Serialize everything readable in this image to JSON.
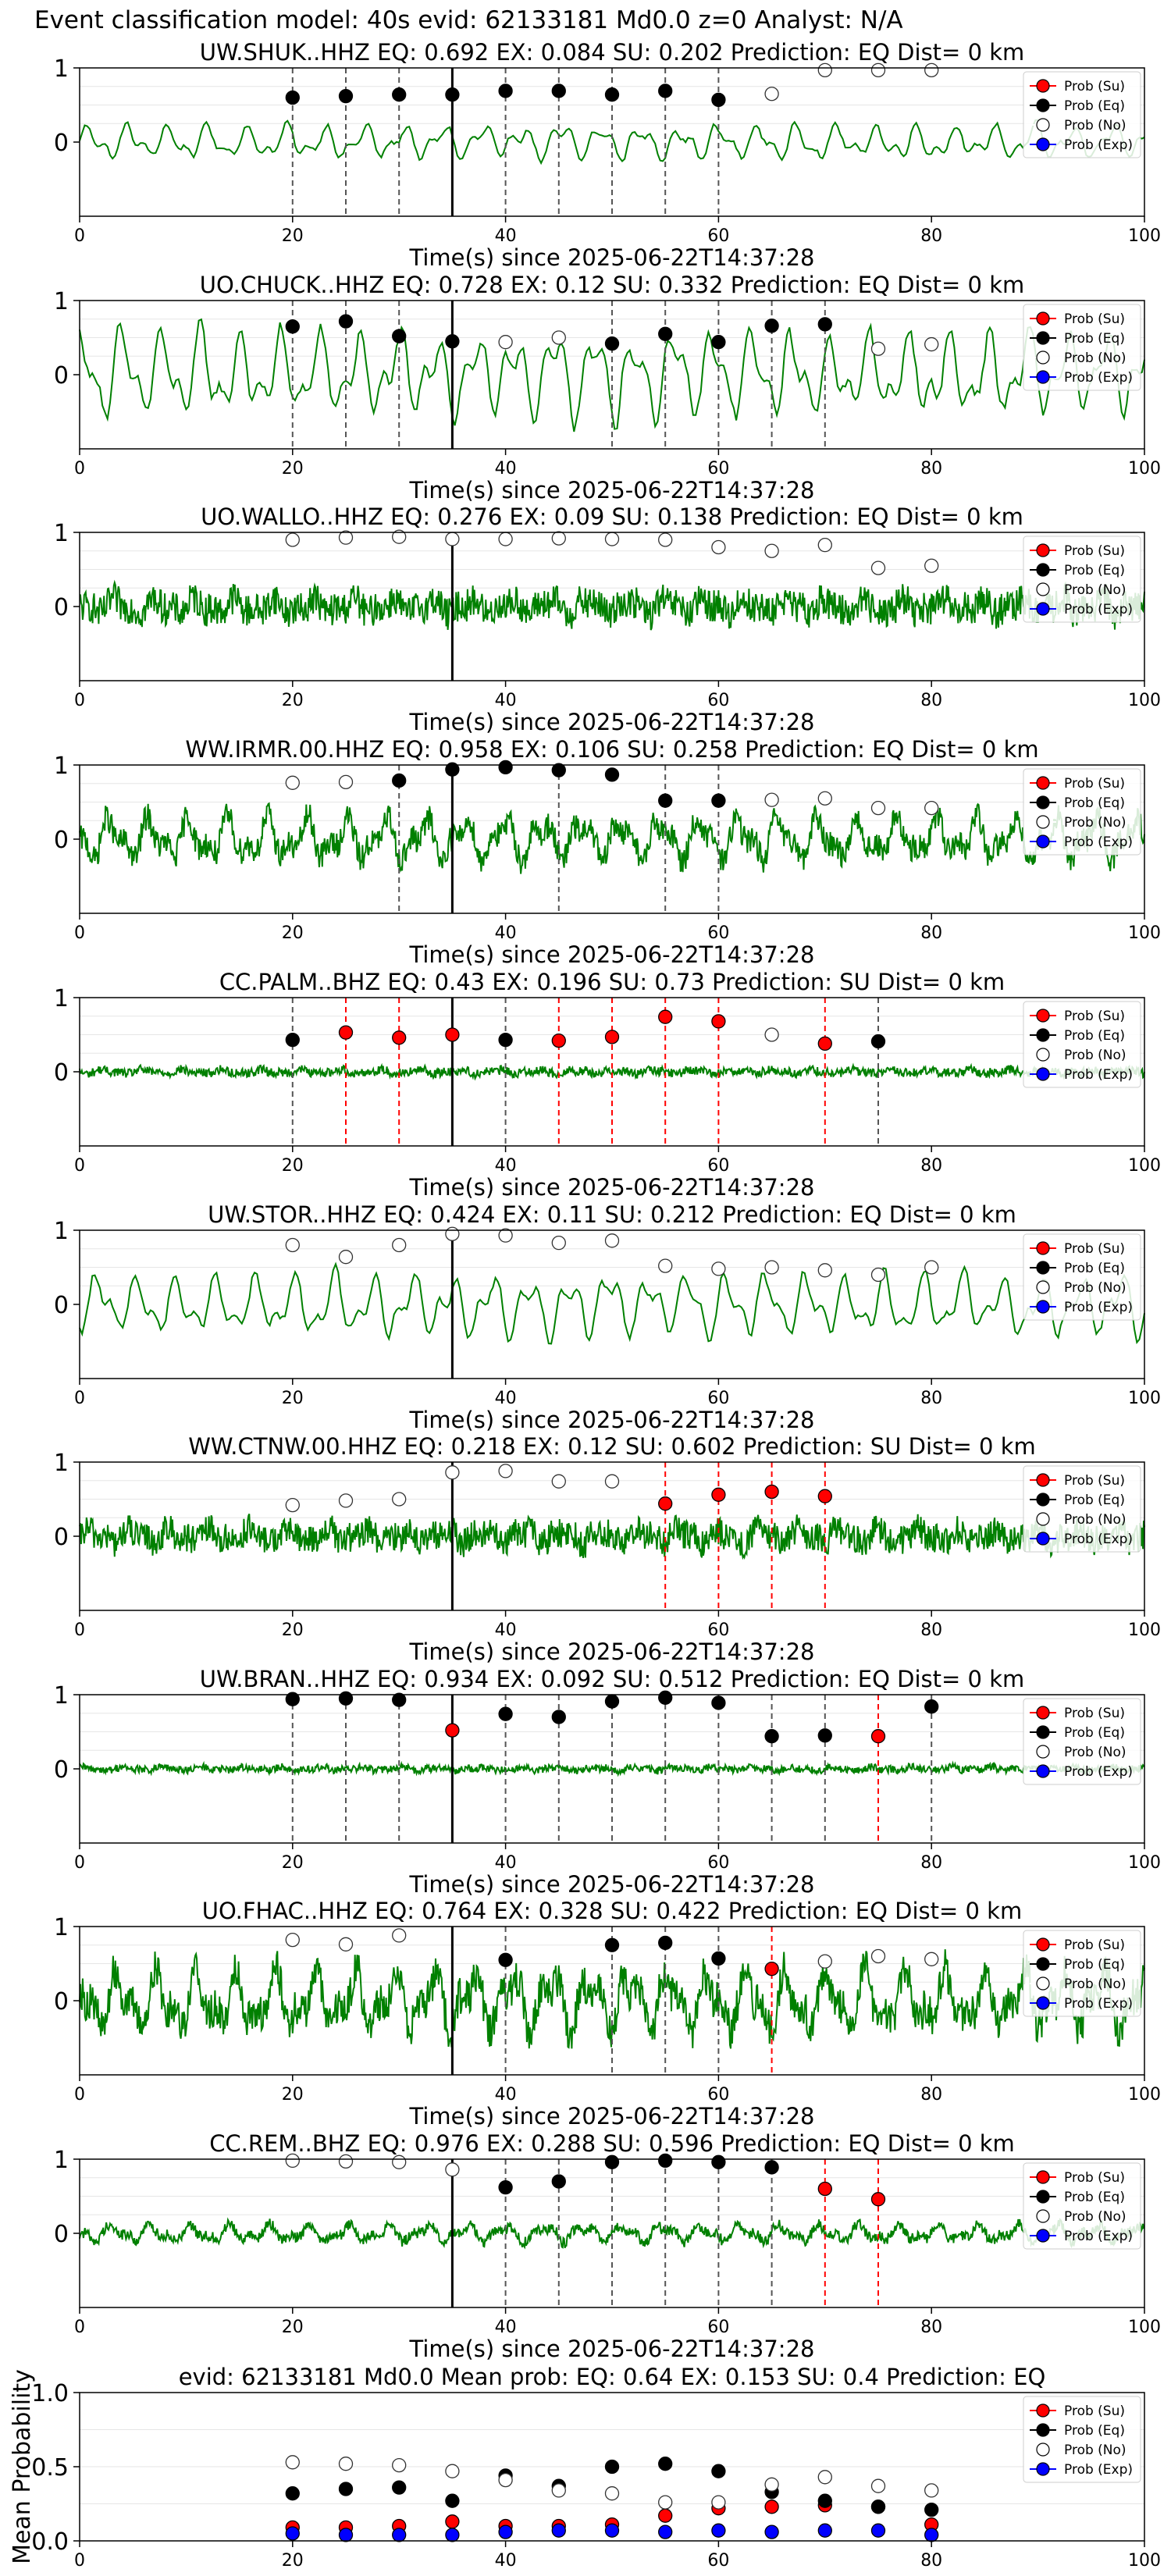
{
  "figure": {
    "suptitle": "Event classification model: 40s evid: 62133181 Md0.0 z=0 Analyst: N/A",
    "xlabel": "Time(s) since 2025-06-22T14:37:28",
    "x_ticks": [
      "0",
      "20",
      "40",
      "60",
      "80",
      "100"
    ],
    "y_ticks_station": [
      "0",
      "1"
    ],
    "legend": [
      "Prob (Su)",
      "Prob (Eq)",
      "Prob (No)",
      "Prob (Exp)"
    ],
    "colors": {
      "trace": "#008000",
      "su": "#ff0000",
      "eq": "#000000",
      "no": "#ffffff",
      "exp": "#0000ff"
    }
  },
  "chart_data": [
    {
      "type": "line",
      "title": "UW.SHUK..HHZ   EQ: 0.692  EX: 0.084  SU: 0.202   Prediction: EQ    Dist= 0 km",
      "xlim": [
        0,
        100
      ],
      "ylim": [
        -1,
        1
      ],
      "origin_time": 35,
      "noise_level": 0.18,
      "noise_type": "smooth",
      "points": [
        [
          20,
          "eq",
          0.6
        ],
        [
          25,
          "eq",
          0.62
        ],
        [
          30,
          "eq",
          0.64
        ],
        [
          35,
          "eq",
          0.64
        ],
        [
          40,
          "eq",
          0.69
        ],
        [
          45,
          "eq",
          0.69
        ],
        [
          50,
          "eq",
          0.64
        ],
        [
          55,
          "eq",
          0.69
        ],
        [
          60,
          "eq",
          0.57
        ],
        [
          65,
          "no",
          0.65
        ],
        [
          70,
          "no",
          0.97
        ],
        [
          75,
          "no",
          0.97
        ],
        [
          80,
          "no",
          0.97
        ]
      ],
      "dashed": [
        [
          20,
          "eq"
        ],
        [
          25,
          "eq"
        ],
        [
          30,
          "eq"
        ],
        [
          40,
          "eq"
        ],
        [
          45,
          "eq"
        ],
        [
          50,
          "eq"
        ],
        [
          55,
          "eq"
        ],
        [
          60,
          "eq"
        ]
      ]
    },
    {
      "type": "line",
      "title": "UO.CHUCK..HHZ   EQ: 0.728  EX: 0.12  SU: 0.332   Prediction: EQ    Dist= 0 km",
      "xlim": [
        0,
        100
      ],
      "ylim": [
        -1,
        1
      ],
      "origin_time": 35,
      "noise_level": 0.45,
      "noise_type": "smooth",
      "points": [
        [
          20,
          "eq",
          0.65
        ],
        [
          25,
          "eq",
          0.72
        ],
        [
          30,
          "eq",
          0.52
        ],
        [
          35,
          "eq",
          0.45
        ],
        [
          40,
          "no",
          0.44
        ],
        [
          45,
          "no",
          0.5
        ],
        [
          50,
          "eq",
          0.42
        ],
        [
          55,
          "eq",
          0.55
        ],
        [
          60,
          "eq",
          0.44
        ],
        [
          65,
          "eq",
          0.66
        ],
        [
          70,
          "eq",
          0.68
        ],
        [
          75,
          "no",
          0.35
        ],
        [
          80,
          "no",
          0.41
        ]
      ],
      "dashed": [
        [
          20,
          "eq"
        ],
        [
          25,
          "eq"
        ],
        [
          30,
          "eq"
        ],
        [
          50,
          "eq"
        ],
        [
          55,
          "eq"
        ],
        [
          60,
          "eq"
        ],
        [
          65,
          "eq"
        ],
        [
          70,
          "eq"
        ]
      ]
    },
    {
      "type": "line",
      "title": "UO.WALLO..HHZ   EQ: 0.276  EX: 0.09  SU: 0.138   Prediction: EQ    Dist= 0 km",
      "xlim": [
        0,
        100
      ],
      "ylim": [
        -1,
        1
      ],
      "origin_time": 35,
      "noise_level": 0.22,
      "noise_type": "rough",
      "points": [
        [
          20,
          "no",
          0.9
        ],
        [
          25,
          "no",
          0.93
        ],
        [
          30,
          "no",
          0.94
        ],
        [
          35,
          "no",
          0.91
        ],
        [
          40,
          "no",
          0.91
        ],
        [
          45,
          "no",
          0.92
        ],
        [
          50,
          "no",
          0.91
        ],
        [
          55,
          "no",
          0.9
        ],
        [
          60,
          "no",
          0.8
        ],
        [
          65,
          "no",
          0.75
        ],
        [
          70,
          "no",
          0.83
        ],
        [
          75,
          "no",
          0.52
        ],
        [
          80,
          "no",
          0.55
        ]
      ],
      "dashed": []
    },
    {
      "type": "line",
      "title": "WW.IRMR.00.HHZ   EQ: 0.958  EX: 0.106  SU: 0.258   Prediction: EQ    Dist= 0 km",
      "xlim": [
        0,
        100
      ],
      "ylim": [
        -1,
        1
      ],
      "origin_time": 35,
      "noise_level": 0.3,
      "noise_type": "mixed",
      "points": [
        [
          20,
          "no",
          0.76
        ],
        [
          25,
          "no",
          0.77
        ],
        [
          30,
          "eq",
          0.79
        ],
        [
          35,
          "eq",
          0.94
        ],
        [
          40,
          "eq",
          0.97
        ],
        [
          45,
          "eq",
          0.93
        ],
        [
          50,
          "eq",
          0.87
        ],
        [
          55,
          "eq",
          0.52
        ],
        [
          60,
          "eq",
          0.52
        ],
        [
          65,
          "no",
          0.53
        ],
        [
          70,
          "no",
          0.55
        ],
        [
          75,
          "no",
          0.42
        ],
        [
          80,
          "no",
          0.42
        ]
      ],
      "dashed": [
        [
          30,
          "eq"
        ],
        [
          45,
          "eq"
        ],
        [
          55,
          "eq"
        ],
        [
          60,
          "eq"
        ]
      ]
    },
    {
      "type": "line",
      "title": "CC.PALM..BHZ   EQ: 0.43  EX: 0.196  SU: 0.73   Prediction: SU    Dist= 0 km",
      "xlim": [
        0,
        100
      ],
      "ylim": [
        -1,
        1
      ],
      "origin_time": 35,
      "noise_level": 0.06,
      "noise_type": "rough",
      "points": [
        [
          20,
          "eq",
          0.43
        ],
        [
          25,
          "su",
          0.53
        ],
        [
          30,
          "su",
          0.46
        ],
        [
          35,
          "su",
          0.5
        ],
        [
          40,
          "eq",
          0.43
        ],
        [
          45,
          "su",
          0.42
        ],
        [
          50,
          "su",
          0.47
        ],
        [
          55,
          "su",
          0.74
        ],
        [
          60,
          "su",
          0.68
        ],
        [
          65,
          "no",
          0.5
        ],
        [
          70,
          "su",
          0.38
        ],
        [
          75,
          "eq",
          0.41
        ]
      ],
      "dashed": [
        [
          20,
          "eq"
        ],
        [
          25,
          "su"
        ],
        [
          30,
          "su"
        ],
        [
          40,
          "eq"
        ],
        [
          45,
          "su"
        ],
        [
          50,
          "su"
        ],
        [
          55,
          "su"
        ],
        [
          60,
          "su"
        ],
        [
          70,
          "su"
        ],
        [
          75,
          "eq"
        ]
      ]
    },
    {
      "type": "line",
      "title": "UW.STOR..HHZ   EQ: 0.424  EX: 0.11  SU: 0.212   Prediction: EQ    Dist= 0 km",
      "xlim": [
        0,
        100
      ],
      "ylim": [
        -1,
        1
      ],
      "origin_time": 35,
      "noise_level": 0.32,
      "noise_type": "smooth",
      "points": [
        [
          20,
          "no",
          0.8
        ],
        [
          25,
          "no",
          0.64
        ],
        [
          30,
          "no",
          0.8
        ],
        [
          35,
          "no",
          0.95
        ],
        [
          40,
          "no",
          0.93
        ],
        [
          45,
          "no",
          0.83
        ],
        [
          50,
          "no",
          0.86
        ],
        [
          55,
          "no",
          0.52
        ],
        [
          60,
          "no",
          0.48
        ],
        [
          65,
          "no",
          0.5
        ],
        [
          70,
          "no",
          0.46
        ],
        [
          75,
          "no",
          0.4
        ],
        [
          80,
          "no",
          0.5
        ]
      ],
      "dashed": []
    },
    {
      "type": "line",
      "title": "WW.CTNW.00.HHZ   EQ: 0.218  EX: 0.12  SU: 0.602   Prediction: SU    Dist= 0 km",
      "xlim": [
        0,
        100
      ],
      "ylim": [
        -1,
        1
      ],
      "origin_time": 35,
      "noise_level": 0.2,
      "noise_type": "rough",
      "points": [
        [
          20,
          "no",
          0.42
        ],
        [
          25,
          "no",
          0.48
        ],
        [
          30,
          "no",
          0.5
        ],
        [
          35,
          "no",
          0.86
        ],
        [
          40,
          "no",
          0.88
        ],
        [
          45,
          "no",
          0.74
        ],
        [
          50,
          "no",
          0.74
        ],
        [
          55,
          "su",
          0.44
        ],
        [
          60,
          "su",
          0.56
        ],
        [
          65,
          "su",
          0.6
        ],
        [
          70,
          "su",
          0.54
        ]
      ],
      "dashed": [
        [
          55,
          "su"
        ],
        [
          60,
          "su"
        ],
        [
          65,
          "su"
        ],
        [
          70,
          "su"
        ]
      ]
    },
    {
      "type": "line",
      "title": "UW.BRAN..HHZ   EQ: 0.934  EX: 0.092  SU: 0.512   Prediction: EQ    Dist= 0 km",
      "xlim": [
        0,
        100
      ],
      "ylim": [
        -1,
        1
      ],
      "origin_time": 35,
      "noise_level": 0.05,
      "noise_type": "rough",
      "points": [
        [
          20,
          "eq",
          0.94
        ],
        [
          25,
          "eq",
          0.95
        ],
        [
          30,
          "eq",
          0.93
        ],
        [
          35,
          "su",
          0.52
        ],
        [
          40,
          "eq",
          0.74
        ],
        [
          45,
          "eq",
          0.7
        ],
        [
          50,
          "eq",
          0.91
        ],
        [
          55,
          "eq",
          0.96
        ],
        [
          60,
          "eq",
          0.89
        ],
        [
          65,
          "eq",
          0.44
        ],
        [
          70,
          "eq",
          0.45
        ],
        [
          75,
          "su",
          0.44
        ],
        [
          80,
          "eq",
          0.84
        ]
      ],
      "dashed": [
        [
          20,
          "eq"
        ],
        [
          25,
          "eq"
        ],
        [
          30,
          "eq"
        ],
        [
          40,
          "eq"
        ],
        [
          45,
          "eq"
        ],
        [
          50,
          "eq"
        ],
        [
          55,
          "eq"
        ],
        [
          60,
          "eq"
        ],
        [
          65,
          "eq"
        ],
        [
          70,
          "eq"
        ],
        [
          75,
          "su"
        ],
        [
          80,
          "eq"
        ]
      ]
    },
    {
      "type": "line",
      "title": "UO.FHAC..HHZ   EQ: 0.764  EX: 0.328  SU: 0.422   Prediction: EQ    Dist= 0 km",
      "xlim": [
        0,
        100
      ],
      "ylim": [
        -1,
        1
      ],
      "origin_time": 35,
      "noise_level": 0.42,
      "noise_type": "mixed",
      "points": [
        [
          20,
          "no",
          0.82
        ],
        [
          25,
          "no",
          0.76
        ],
        [
          30,
          "no",
          0.88
        ],
        [
          40,
          "eq",
          0.55
        ],
        [
          50,
          "eq",
          0.75
        ],
        [
          55,
          "eq",
          0.78
        ],
        [
          60,
          "eq",
          0.57
        ],
        [
          65,
          "su",
          0.43
        ],
        [
          70,
          "no",
          0.53
        ],
        [
          75,
          "no",
          0.6
        ],
        [
          80,
          "no",
          0.56
        ]
      ],
      "dashed": [
        [
          40,
          "eq"
        ],
        [
          50,
          "eq"
        ],
        [
          55,
          "eq"
        ],
        [
          60,
          "eq"
        ],
        [
          65,
          "su"
        ]
      ]
    },
    {
      "type": "line",
      "title": "CC.REM..BHZ   EQ: 0.976  EX: 0.288  SU: 0.596   Prediction: EQ    Dist= 0 km",
      "xlim": [
        0,
        100
      ],
      "ylim": [
        -1,
        1
      ],
      "origin_time": 35,
      "noise_level": 0.12,
      "noise_type": "mixed",
      "points": [
        [
          20,
          "no",
          0.98
        ],
        [
          25,
          "no",
          0.97
        ],
        [
          30,
          "no",
          0.96
        ],
        [
          35,
          "no",
          0.86
        ],
        [
          40,
          "eq",
          0.62
        ],
        [
          45,
          "eq",
          0.7
        ],
        [
          50,
          "eq",
          0.96
        ],
        [
          55,
          "eq",
          0.98
        ],
        [
          60,
          "eq",
          0.96
        ],
        [
          65,
          "eq",
          0.89
        ],
        [
          70,
          "su",
          0.6
        ],
        [
          75,
          "su",
          0.46
        ]
      ],
      "dashed": [
        [
          40,
          "eq"
        ],
        [
          45,
          "eq"
        ],
        [
          50,
          "eq"
        ],
        [
          55,
          "eq"
        ],
        [
          60,
          "eq"
        ],
        [
          65,
          "eq"
        ],
        [
          70,
          "su"
        ],
        [
          75,
          "su"
        ]
      ]
    },
    {
      "type": "scatter",
      "title": "evid: 62133181  Md0.0   Mean prob:    EQ: 0.64  EX: 0.153  SU: 0.4    Prediction: EQ",
      "ylabel": "Mean Probability",
      "xlim": [
        0,
        100
      ],
      "ylim": [
        0,
        1
      ],
      "y_ticks": [
        "0.0",
        "0.5",
        "1.0"
      ],
      "x": [
        20,
        25,
        30,
        35,
        40,
        45,
        50,
        55,
        60,
        65,
        70,
        75,
        80
      ],
      "series": [
        {
          "name": "Prob (Su)",
          "key": "su",
          "values": [
            0.09,
            0.09,
            0.1,
            0.13,
            0.1,
            0.1,
            0.11,
            0.17,
            0.22,
            0.23,
            0.24,
            0.23,
            0.11
          ]
        },
        {
          "name": "Prob (Eq)",
          "key": "eq",
          "values": [
            0.32,
            0.35,
            0.36,
            0.27,
            0.44,
            0.37,
            0.5,
            0.52,
            0.47,
            0.33,
            0.27,
            0.23,
            0.21
          ]
        },
        {
          "name": "Prob (No)",
          "key": "no",
          "values": [
            0.53,
            0.52,
            0.51,
            0.47,
            0.41,
            0.34,
            0.32,
            0.26,
            0.26,
            0.38,
            0.43,
            0.37,
            0.34
          ]
        },
        {
          "name": "Prob (Exp)",
          "key": "exp",
          "values": [
            0.05,
            0.04,
            0.04,
            0.04,
            0.06,
            0.07,
            0.07,
            0.06,
            0.07,
            0.06,
            0.07,
            0.07,
            0.04
          ]
        }
      ]
    }
  ]
}
